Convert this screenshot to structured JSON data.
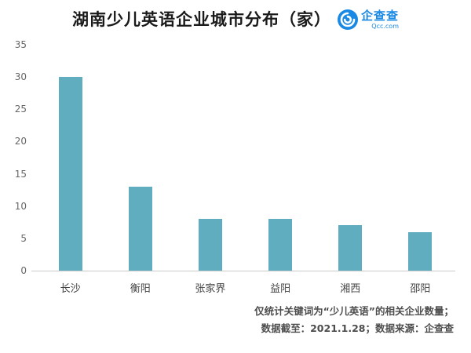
{
  "header": {
    "title": "湖南少儿英语企业城市分布（家）",
    "logo": {
      "name": "企查查",
      "domain": "Qcc.com",
      "brand_color": "#1989e4"
    }
  },
  "chart_data": {
    "type": "bar",
    "title": "湖南少儿英语企业城市分布（家）",
    "categories": [
      "长沙",
      "衡阳",
      "张家界",
      "益阳",
      "湘西",
      "邵阳"
    ],
    "values": [
      30,
      13,
      8,
      8,
      7,
      6
    ],
    "xlabel": "",
    "ylabel": "",
    "ylim": [
      0,
      35
    ],
    "yticks": [
      0,
      5,
      10,
      15,
      20,
      25,
      30,
      35
    ],
    "bar_color": "#5fadbe",
    "grid": false,
    "legend": false
  },
  "footer": {
    "line1": "仅统计关键词为“少儿英语”的相关企业数量；",
    "line2": "数据截至：2021.1.28；数据来源：企查查"
  }
}
